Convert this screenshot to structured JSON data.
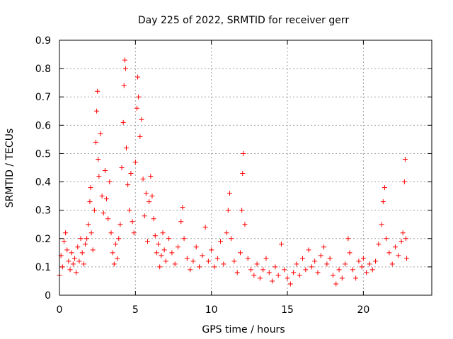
{
  "chart_data": {
    "type": "scatter",
    "title": "Day 225 of 2022, SRMTID for receiver gerr",
    "xlabel": "GPS time / hours",
    "ylabel": "SRMTID / TECUs",
    "xlim": [
      0,
      24.5
    ],
    "ylim": [
      0,
      0.9
    ],
    "xticks": [
      0,
      5,
      10,
      15,
      20
    ],
    "xtick_labels": [
      "0",
      "5",
      "10",
      "15",
      "20"
    ],
    "yticks": [
      0,
      0.1,
      0.2,
      0.3,
      0.4,
      0.5,
      0.6,
      0.7,
      0.8,
      0.9
    ],
    "ytick_labels": [
      "0",
      "0.1",
      "0.2",
      "0.3",
      "0.4",
      "0.5",
      "0.6",
      "0.7",
      "0.8",
      "0.9"
    ],
    "grid": true,
    "marker": "plus",
    "color": "#ff0000",
    "series": [
      {
        "name": "SRMTID",
        "points": [
          [
            0.0,
            0.07
          ],
          [
            0.1,
            0.14
          ],
          [
            0.2,
            0.1
          ],
          [
            0.3,
            0.19
          ],
          [
            0.4,
            0.22
          ],
          [
            0.5,
            0.16
          ],
          [
            0.6,
            0.12
          ],
          [
            0.7,
            0.09
          ],
          [
            0.8,
            0.15
          ],
          [
            0.9,
            0.11
          ],
          [
            1.0,
            0.13
          ],
          [
            1.1,
            0.08
          ],
          [
            1.2,
            0.17
          ],
          [
            1.3,
            0.12
          ],
          [
            1.4,
            0.2
          ],
          [
            1.5,
            0.15
          ],
          [
            1.6,
            0.11
          ],
          [
            1.7,
            0.18
          ],
          [
            1.8,
            0.2
          ],
          [
            1.9,
            0.25
          ],
          [
            2.0,
            0.33
          ],
          [
            2.05,
            0.38
          ],
          [
            2.1,
            0.22
          ],
          [
            2.2,
            0.16
          ],
          [
            2.3,
            0.3
          ],
          [
            2.4,
            0.54
          ],
          [
            2.45,
            0.65
          ],
          [
            2.5,
            0.72
          ],
          [
            2.55,
            0.48
          ],
          [
            2.6,
            0.42
          ],
          [
            2.7,
            0.57
          ],
          [
            2.8,
            0.35
          ],
          [
            2.9,
            0.29
          ],
          [
            3.0,
            0.44
          ],
          [
            3.1,
            0.34
          ],
          [
            3.2,
            0.27
          ],
          [
            3.3,
            0.4
          ],
          [
            3.4,
            0.22
          ],
          [
            3.5,
            0.15
          ],
          [
            3.6,
            0.11
          ],
          [
            3.7,
            0.18
          ],
          [
            3.8,
            0.13
          ],
          [
            3.9,
            0.2
          ],
          [
            4.0,
            0.25
          ],
          [
            4.1,
            0.45
          ],
          [
            4.2,
            0.61
          ],
          [
            4.25,
            0.74
          ],
          [
            4.3,
            0.83
          ],
          [
            4.35,
            0.8
          ],
          [
            4.4,
            0.52
          ],
          [
            4.5,
            0.39
          ],
          [
            4.6,
            0.3
          ],
          [
            4.7,
            0.43
          ],
          [
            4.8,
            0.26
          ],
          [
            4.9,
            0.22
          ],
          [
            5.0,
            0.47
          ],
          [
            5.1,
            0.66
          ],
          [
            5.15,
            0.77
          ],
          [
            5.2,
            0.7
          ],
          [
            5.3,
            0.56
          ],
          [
            5.4,
            0.62
          ],
          [
            5.5,
            0.41
          ],
          [
            5.6,
            0.28
          ],
          [
            5.7,
            0.36
          ],
          [
            5.8,
            0.19
          ],
          [
            5.9,
            0.33
          ],
          [
            6.0,
            0.42
          ],
          [
            6.1,
            0.35
          ],
          [
            6.2,
            0.27
          ],
          [
            6.3,
            0.21
          ],
          [
            6.4,
            0.15
          ],
          [
            6.5,
            0.18
          ],
          [
            6.6,
            0.1
          ],
          [
            6.7,
            0.14
          ],
          [
            6.8,
            0.22
          ],
          [
            6.9,
            0.16
          ],
          [
            7.0,
            0.12
          ],
          [
            7.2,
            0.2
          ],
          [
            7.4,
            0.15
          ],
          [
            7.6,
            0.11
          ],
          [
            7.8,
            0.17
          ],
          [
            8.0,
            0.26
          ],
          [
            8.1,
            0.31
          ],
          [
            8.2,
            0.2
          ],
          [
            8.4,
            0.13
          ],
          [
            8.6,
            0.09
          ],
          [
            8.8,
            0.12
          ],
          [
            9.0,
            0.17
          ],
          [
            9.2,
            0.1
          ],
          [
            9.4,
            0.14
          ],
          [
            9.6,
            0.24
          ],
          [
            9.8,
            0.12
          ],
          [
            10.0,
            0.16
          ],
          [
            10.2,
            0.1
          ],
          [
            10.4,
            0.13
          ],
          [
            10.6,
            0.19
          ],
          [
            10.8,
            0.11
          ],
          [
            11.0,
            0.22
          ],
          [
            11.1,
            0.3
          ],
          [
            11.2,
            0.36
          ],
          [
            11.3,
            0.2
          ],
          [
            11.5,
            0.12
          ],
          [
            11.7,
            0.08
          ],
          [
            11.9,
            0.15
          ],
          [
            12.0,
            0.3
          ],
          [
            12.05,
            0.43
          ],
          [
            12.1,
            0.5
          ],
          [
            12.2,
            0.25
          ],
          [
            12.4,
            0.13
          ],
          [
            12.6,
            0.09
          ],
          [
            12.8,
            0.07
          ],
          [
            13.0,
            0.11
          ],
          [
            13.2,
            0.06
          ],
          [
            13.4,
            0.09
          ],
          [
            13.6,
            0.13
          ],
          [
            13.8,
            0.08
          ],
          [
            14.0,
            0.05
          ],
          [
            14.2,
            0.1
          ],
          [
            14.4,
            0.07
          ],
          [
            14.6,
            0.18
          ],
          [
            14.8,
            0.09
          ],
          [
            15.0,
            0.06
          ],
          [
            15.2,
            0.04
          ],
          [
            15.4,
            0.08
          ],
          [
            15.6,
            0.11
          ],
          [
            15.8,
            0.07
          ],
          [
            16.0,
            0.13
          ],
          [
            16.2,
            0.09
          ],
          [
            16.4,
            0.16
          ],
          [
            16.6,
            0.1
          ],
          [
            16.8,
            0.12
          ],
          [
            17.0,
            0.08
          ],
          [
            17.2,
            0.14
          ],
          [
            17.4,
            0.17
          ],
          [
            17.6,
            0.11
          ],
          [
            17.8,
            0.13
          ],
          [
            18.0,
            0.07
          ],
          [
            18.2,
            0.04
          ],
          [
            18.4,
            0.09
          ],
          [
            18.6,
            0.06
          ],
          [
            18.8,
            0.11
          ],
          [
            19.0,
            0.2
          ],
          [
            19.1,
            0.15
          ],
          [
            19.3,
            0.09
          ],
          [
            19.5,
            0.06
          ],
          [
            19.7,
            0.12
          ],
          [
            19.9,
            0.1
          ],
          [
            20.0,
            0.13
          ],
          [
            20.2,
            0.08
          ],
          [
            20.4,
            0.11
          ],
          [
            20.6,
            0.09
          ],
          [
            20.8,
            0.12
          ],
          [
            21.0,
            0.18
          ],
          [
            21.2,
            0.25
          ],
          [
            21.3,
            0.33
          ],
          [
            21.4,
            0.38
          ],
          [
            21.5,
            0.2
          ],
          [
            21.7,
            0.15
          ],
          [
            21.9,
            0.11
          ],
          [
            22.1,
            0.17
          ],
          [
            22.3,
            0.14
          ],
          [
            22.5,
            0.19
          ],
          [
            22.6,
            0.22
          ],
          [
            22.7,
            0.4
          ],
          [
            22.75,
            0.48
          ],
          [
            22.8,
            0.2
          ],
          [
            22.85,
            0.13
          ]
        ]
      }
    ]
  }
}
